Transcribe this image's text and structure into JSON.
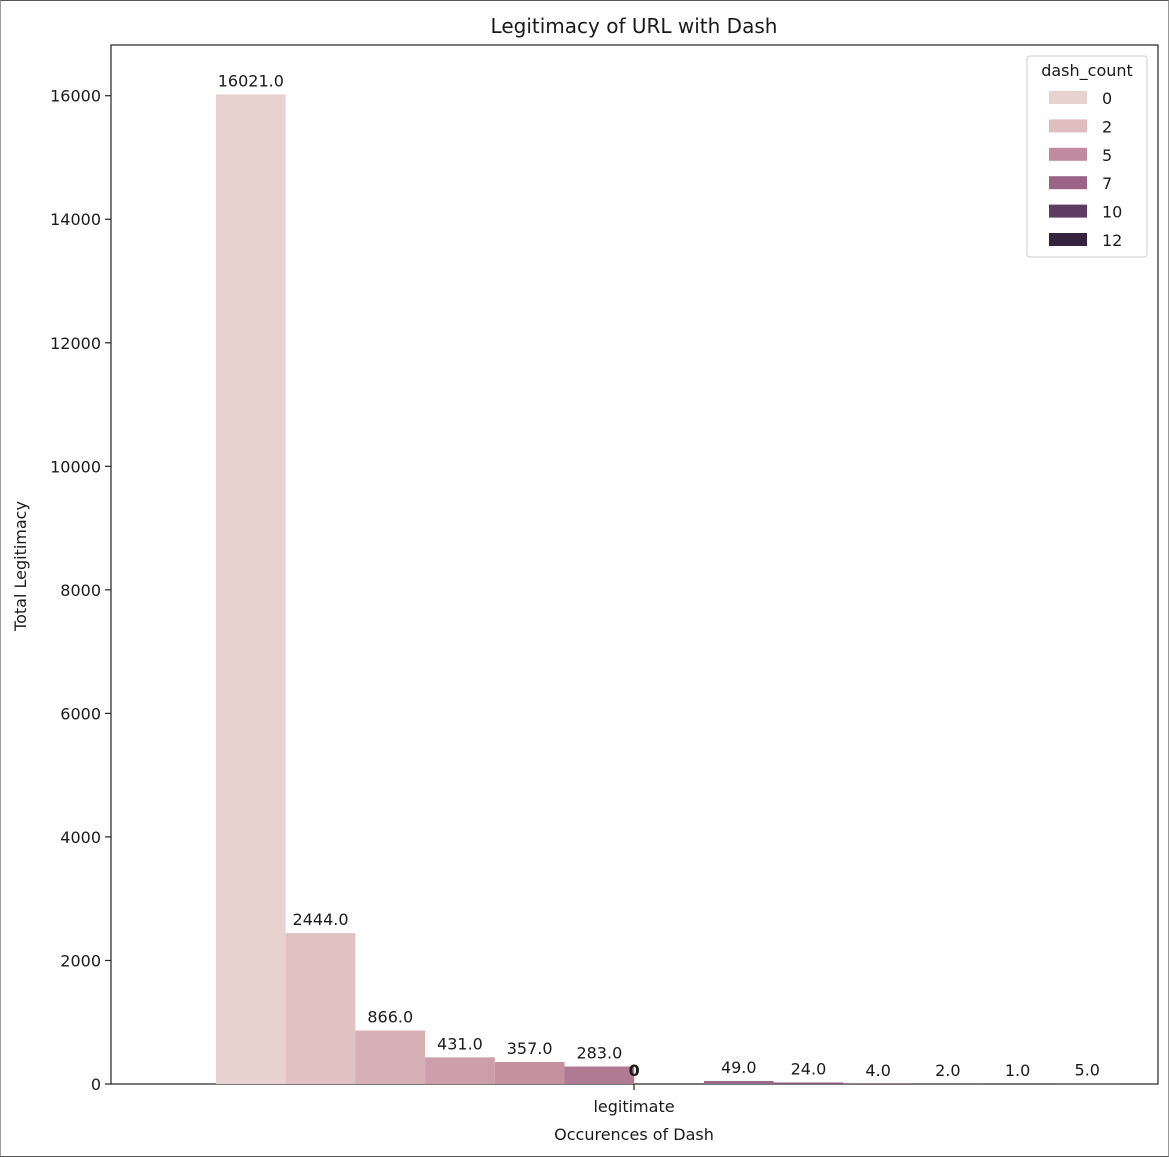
{
  "chart_data": {
    "type": "bar",
    "title": "Legitimacy of URL with Dash",
    "xlabel": "Occurences of Dash",
    "ylabel": "Total Legitimacy",
    "categories": [
      "legitimate"
    ],
    "ylim": [
      0,
      16821
    ],
    "yticks": [
      0,
      2000,
      4000,
      6000,
      8000,
      10000,
      12000,
      14000,
      16000
    ],
    "grid": false,
    "legend": {
      "title": "dash_count",
      "placement": "top-right",
      "entries": [
        {
          "label": "0",
          "color": "#e8d2cf"
        },
        {
          "label": "2",
          "color": "#dfbcbe"
        },
        {
          "label": "5",
          "color": "#c08a9f"
        },
        {
          "label": "7",
          "color": "#9b6487"
        },
        {
          "label": "10",
          "color": "#5d3b62"
        },
        {
          "label": "12",
          "color": "#35223f"
        }
      ]
    },
    "series": [
      {
        "value": 16021.0,
        "label": "16021.0",
        "color": "#e8d2cf"
      },
      {
        "value": 2444.0,
        "label": "2444.0",
        "color": "#e0c2c2"
      },
      {
        "value": 866.0,
        "label": "866.0",
        "color": "#d6b0b5"
      },
      {
        "value": 431.0,
        "label": "431.0",
        "color": "#cc9eab"
      },
      {
        "value": 357.0,
        "label": "357.0",
        "color": "#c4929f"
      },
      {
        "value": 283.0,
        "label": "283.0",
        "color": "#b07a93"
      },
      {
        "value": 0,
        "label": "0",
        "color": "#a06c8c"
      },
      {
        "value": 49.0,
        "label": "49.0",
        "color": "#9a6888"
      },
      {
        "value": 24.0,
        "label": "24.0",
        "color": "#8a5a7e"
      },
      {
        "value": 4.0,
        "label": "4.0",
        "color": "#76496f"
      },
      {
        "value": 2.0,
        "label": "2.0",
        "color": "#5f3c63"
      },
      {
        "value": 1.0,
        "label": "1.0",
        "color": "#4a2f52"
      },
      {
        "value": 5.0,
        "label": "5.0",
        "color": "#35223f"
      }
    ]
  }
}
